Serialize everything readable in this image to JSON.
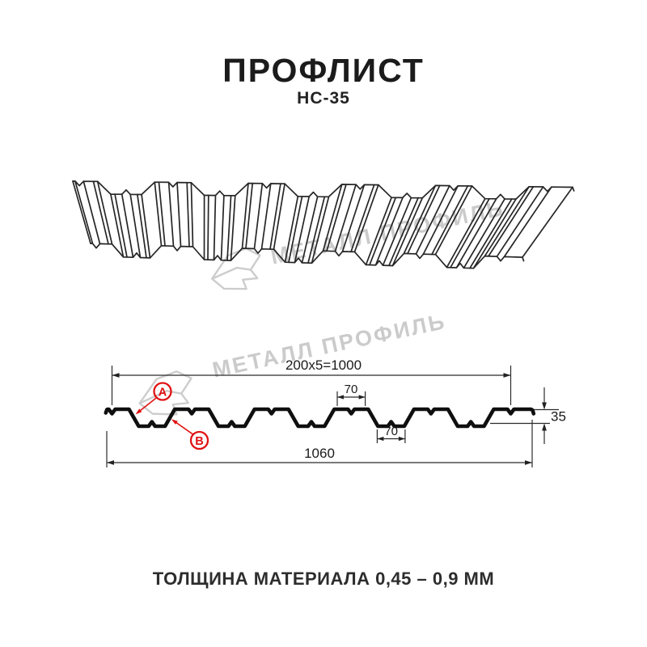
{
  "header": {
    "title": "ПРОФЛИСТ",
    "subtitle": "НС-35"
  },
  "watermark": {
    "text": "МЕТАЛЛ ПРОФИЛЬ",
    "color": "#cbcbcb"
  },
  "dimensions": {
    "top_total": "200x5=1000",
    "rib_top": "70",
    "rib_bottom": "70",
    "profile_height": "35",
    "overall_width": "1060"
  },
  "callouts": {
    "a": "A",
    "b": "B",
    "color": "#e01212"
  },
  "footer": {
    "text": "ТОЛЩИНА МАТЕРИАЛА 0,45 – 0,9 ММ"
  },
  "colors": {
    "line_black": "#1a1a1a",
    "accent_red": "#e01212",
    "watermark_gray": "#cbcbcb"
  }
}
